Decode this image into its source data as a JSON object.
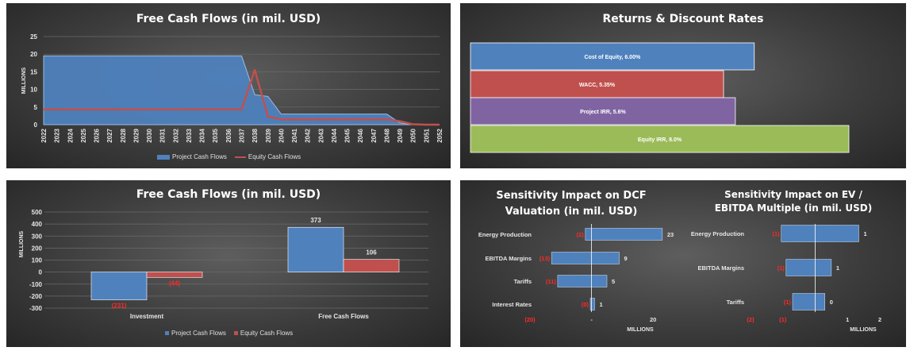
{
  "colors": {
    "blue": "#4f81bd",
    "blue_dark": "#2e5f9e",
    "red": "#c0504d",
    "red_dark": "#9c2f2c",
    "purple": "#8064a2",
    "green": "#9bbb59",
    "grid": "#6a6a6a",
    "text": "#e6e6e6",
    "negative": "#ff2a2a"
  },
  "chart_data": [
    {
      "type": "area",
      "title": "Free Cash Flows (in mil. USD)",
      "ylabel": "MILLIONS",
      "ylim": [
        0,
        25
      ],
      "yticks": [
        0,
        5,
        10,
        15,
        20,
        25
      ],
      "x": [
        "2022",
        "2023",
        "2024",
        "2025",
        "2026",
        "2027",
        "2028",
        "2029",
        "2030",
        "2031",
        "2032",
        "2033",
        "2034",
        "2035",
        "2036",
        "2037",
        "2038",
        "2039",
        "2040",
        "2041",
        "2042",
        "2043",
        "2044",
        "2045",
        "2046",
        "2047",
        "2048",
        "2049",
        "2050",
        "2051",
        "2052"
      ],
      "series": [
        {
          "name": "Project Cash Flows",
          "type": "area",
          "values": [
            19.5,
            19.5,
            19.5,
            19.5,
            19.5,
            19.5,
            19.5,
            19.5,
            19.5,
            19.5,
            19.5,
            19.5,
            19.5,
            19.5,
            19.5,
            19.5,
            8.5,
            8,
            3,
            3,
            3,
            3,
            3,
            3,
            3,
            3,
            3,
            0.5,
            0,
            0,
            0
          ]
        },
        {
          "name": "Equity Cash Flows",
          "type": "line",
          "values": [
            4.3,
            4.3,
            4.3,
            4.3,
            4.3,
            4.3,
            4.3,
            4.3,
            4.3,
            4.3,
            4.3,
            4.3,
            4.3,
            4.3,
            4.3,
            4.3,
            15.5,
            2.3,
            1.5,
            1.5,
            1.5,
            1.5,
            1.5,
            1.5,
            1.5,
            1.5,
            1.5,
            1.0,
            0.1,
            0,
            0
          ]
        }
      ],
      "legend": "bottom"
    },
    {
      "type": "bar",
      "orientation": "horizontal",
      "title": "Returns & Discount Rates",
      "xlim": [
        0,
        10
      ],
      "bars": [
        {
          "label": "Cost of Equity, 6.00%",
          "value": 6.0,
          "color": "#4f81bd"
        },
        {
          "label": "WACC, 5.35%",
          "value": 5.35,
          "color": "#c0504d"
        },
        {
          "label": "Project IRR, 5.6%",
          "value": 5.6,
          "color": "#8064a2"
        },
        {
          "label": "Equity IRR, 8.0%",
          "value": 8.0,
          "color": "#9bbb59"
        }
      ]
    },
    {
      "type": "bar",
      "title": "Free Cash Flows (in mil. USD)",
      "ylabel": "MILLIONS",
      "ylim": [
        -300,
        500
      ],
      "yticks": [
        -300,
        -200,
        -100,
        0,
        100,
        200,
        300,
        400,
        500
      ],
      "ytick_labels": [
        "-300",
        "-200",
        "-100",
        "0",
        "100",
        "200",
        "300",
        "400",
        "500"
      ],
      "categories": [
        "Investment",
        "Free Cash Flows"
      ],
      "series": [
        {
          "name": "Project Cash Flows",
          "values": [
            -231,
            373
          ],
          "labels": [
            "(231)",
            "373"
          ]
        },
        {
          "name": "Equity Cash Flows",
          "values": [
            -44,
            106
          ],
          "labels": [
            "(44)",
            "106"
          ]
        }
      ],
      "legend": "bottom"
    },
    {
      "type": "bar",
      "orientation": "horizontal",
      "title": "Sensitivity Impact on DCF Valuation (in mil. USD)",
      "xlabel": "MILLIONS",
      "xlim": [
        -20,
        30
      ],
      "xticks": [
        -20,
        0,
        20
      ],
      "xtick_labels": [
        "(20)",
        "-",
        "20"
      ],
      "categories": [
        "Energy Production",
        "EBITDA Margins",
        "Tariffs",
        "Interest Rates"
      ],
      "low": [
        -2,
        -13,
        -11,
        -0.4
      ],
      "high": [
        23,
        9,
        5,
        1
      ],
      "low_labels": [
        "(2)",
        "(13)",
        "(11)",
        "(0)"
      ],
      "high_labels": [
        "23",
        "9",
        "5",
        "1"
      ]
    },
    {
      "type": "bar",
      "orientation": "horizontal",
      "title": "Sensitivity Impact on EV / EBITDA Multiple (in mil. USD)",
      "xlabel": "MILLIONS",
      "xlim": [
        -2,
        2
      ],
      "xticks": [
        -2,
        -1,
        1,
        2
      ],
      "xtick_labels": [
        "(2)",
        "(1)",
        "1",
        "2"
      ],
      "categories": [
        "Energy Production",
        "EBITDA Margins",
        "Tariffs"
      ],
      "low": [
        -1.05,
        -0.9,
        -0.7
      ],
      "high": [
        1.35,
        0.5,
        0.3
      ],
      "low_labels": [
        "(1)",
        "(1)",
        "(1)"
      ],
      "high_labels": [
        "1",
        "1",
        "0"
      ]
    }
  ]
}
